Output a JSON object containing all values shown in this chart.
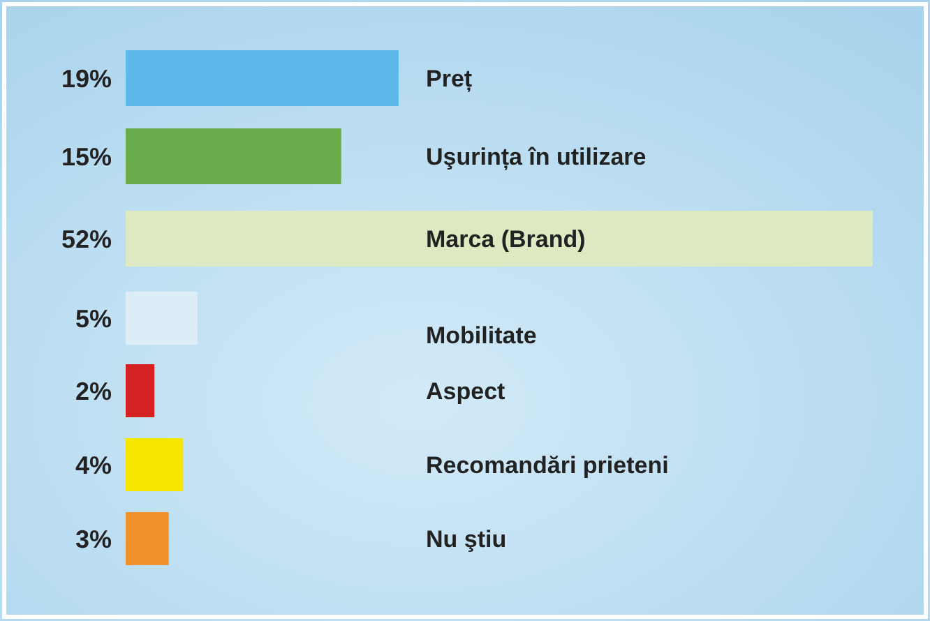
{
  "chart_data": {
    "type": "bar",
    "orientation": "horizontal",
    "categories": [
      "Preț",
      "Uşurința în utilizare",
      "Marca (Brand)",
      "Mobilitate",
      "Aspect",
      "Recomandări prieteni",
      "Nu ştiu"
    ],
    "values": [
      19,
      15,
      52,
      5,
      2,
      4,
      3
    ],
    "colors": [
      "#5cb9e9",
      "#6aab4b",
      "#dde9c1",
      "#dcedf8",
      "#d52121",
      "#f6e600",
      "#f1912b"
    ],
    "value_labels": [
      "19%",
      "15%",
      "52%",
      "5%",
      "2%",
      "4%",
      "3%"
    ]
  }
}
